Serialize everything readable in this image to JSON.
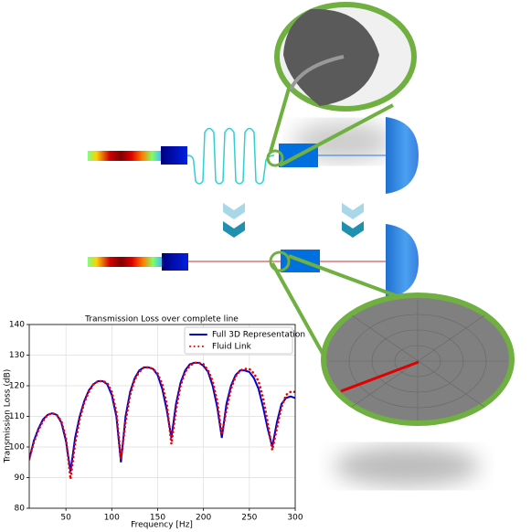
{
  "chart_data": {
    "type": "line",
    "title": "Transmission Loss over complete line",
    "x_label": "Frequency [Hz]",
    "y_label": "Transmission Loss (dB)",
    "x": [
      10,
      15,
      20,
      25,
      30,
      35,
      40,
      45,
      50,
      55,
      60,
      65,
      70,
      75,
      80,
      85,
      90,
      95,
      100,
      105,
      110,
      115,
      120,
      125,
      130,
      135,
      140,
      145,
      150,
      155,
      160,
      165,
      170,
      175,
      180,
      185,
      190,
      195,
      200,
      205,
      210,
      215,
      220,
      225,
      230,
      235,
      240,
      245,
      250,
      255,
      260,
      265,
      270,
      275,
      280,
      285,
      290,
      295,
      300
    ],
    "series": [
      {
        "name": "Full 3D Representation",
        "color": "#0000cc",
        "style": "solid",
        "values": [
          96,
          102,
          106,
          109,
          110.5,
          111,
          110.5,
          108,
          102,
          92,
          103,
          110,
          115,
          118.5,
          120.5,
          121.5,
          121.5,
          120.5,
          117,
          110,
          95,
          110,
          118,
          122.5,
          125,
          126,
          126,
          125.5,
          123.5,
          119,
          112,
          103,
          114,
          121,
          125,
          127,
          127.5,
          127.5,
          126.5,
          124.5,
          120,
          113,
          103,
          114,
          120,
          123.5,
          125,
          125,
          124.5,
          122.5,
          119,
          113,
          106,
          100,
          108,
          114,
          116,
          116.5,
          116
        ]
      },
      {
        "name": "Fluid Link",
        "color": "#ee0000",
        "style": "dotted",
        "values": [
          96,
          101.5,
          105.5,
          108.5,
          110.5,
          111,
          110.5,
          108.5,
          103,
          89.5,
          101,
          109,
          114.5,
          118,
          120.5,
          121.5,
          121.5,
          121,
          118,
          111.5,
          96,
          108,
          117,
          122,
          124.5,
          126,
          126,
          125.5,
          124,
          120.5,
          114,
          101,
          112,
          120,
          124.5,
          126.5,
          127.5,
          127.5,
          127,
          125,
          121.5,
          115,
          104,
          112,
          119,
          123,
          125,
          125.5,
          125.5,
          124,
          121.5,
          116,
          108,
          99,
          106,
          113,
          117,
          118,
          118
        ]
      }
    ],
    "xlim": [
      10,
      300
    ],
    "ylim": [
      80,
      140
    ],
    "xticks": [
      50,
      100,
      150,
      200,
      250,
      300
    ],
    "yticks": [
      80,
      90,
      100,
      110,
      120,
      130,
      140
    ],
    "grid": true,
    "legend": "upper right"
  }
}
